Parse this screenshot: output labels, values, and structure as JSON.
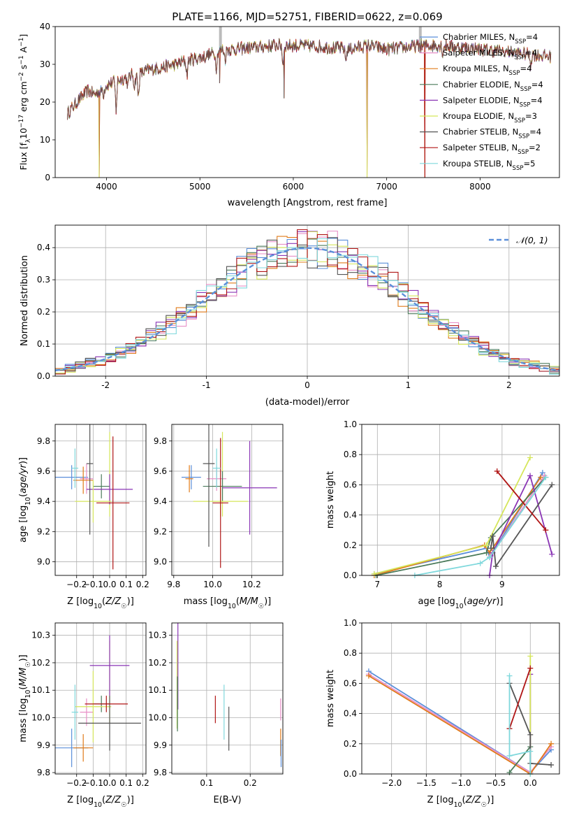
{
  "figure_title": "PLATE=1166, MJD=52751, FIBERID=0622, z=0.069",
  "colors": {
    "Chabrier MILES": "#5b8fd9",
    "Salpeter MILES": "#e88fc7",
    "Kroupa MILES": "#e07b1a",
    "Chabrier ELODIE": "#4a7a5a",
    "Salpeter ELODIE": "#8a35b5",
    "Kroupa ELODIE": "#d5e65a",
    "Chabrier STELIB": "#555555",
    "Salpeter STELIB": "#b01515",
    "Kroupa STELIB": "#7fd8dc",
    "normal_curve": "#5b8fd9",
    "grid": "#b0b0b0"
  },
  "chart_data": [
    {
      "id": "spectrum",
      "type": "line",
      "xlabel": "wavelength [Angstrom, rest frame]",
      "ylabel": "Flux [f_λ 10^-17 erg cm^-2 s^-1 A^-1]",
      "xlim": [
        3450,
        8850
      ],
      "ylim": [
        0,
        40
      ],
      "xticks": [
        4000,
        5000,
        6000,
        7000,
        8000
      ],
      "yticks": [
        0,
        10,
        20,
        30,
        40
      ],
      "grid": false,
      "legend_position": "top-right",
      "legend": [
        {
          "key": "Chabrier MILES",
          "label": "Chabrier MILES, N",
          "sub": "SSP",
          "n": "=4"
        },
        {
          "key": "Salpeter MILES",
          "label": "Salpeter MILES, N",
          "sub": "SSP",
          "n": "=4"
        },
        {
          "key": "Kroupa MILES",
          "label": "Kroupa MILES, N",
          "sub": "SSP",
          "n": "=4"
        },
        {
          "key": "Chabrier ELODIE",
          "label": "Chabrier ELODIE, N",
          "sub": "SSP",
          "n": "=4"
        },
        {
          "key": "Salpeter ELODIE",
          "label": "Salpeter ELODIE, N",
          "sub": "SSP",
          "n": "=4"
        },
        {
          "key": "Kroupa ELODIE",
          "label": "Kroupa ELODIE, N",
          "sub": "SSP",
          "n": "=3"
        },
        {
          "key": "Chabrier STELIB",
          "label": "Chabrier STELIB, N",
          "sub": "SSP",
          "n": "=4"
        },
        {
          "key": "Salpeter STELIB",
          "label": "Salpeter STELIB, N",
          "sub": "SSP",
          "n": "=2"
        },
        {
          "key": "Kroupa STELIB",
          "label": "Kroupa STELIB, N",
          "sub": "SSP",
          "n": "=5"
        }
      ],
      "continuum": [
        [
          3580,
          17
        ],
        [
          3650,
          19
        ],
        [
          3720,
          21
        ],
        [
          3800,
          23
        ],
        [
          3880,
          22
        ],
        [
          3950,
          24
        ],
        [
          4050,
          25
        ],
        [
          4150,
          26
        ],
        [
          4250,
          27
        ],
        [
          4350,
          27.5
        ],
        [
          4450,
          28.5
        ],
        [
          4550,
          29
        ],
        [
          4650,
          29.5
        ],
        [
          4750,
          30
        ],
        [
          4850,
          31
        ],
        [
          4950,
          31.5
        ],
        [
          5050,
          32
        ],
        [
          5150,
          33
        ],
        [
          5250,
          34
        ],
        [
          5400,
          34
        ],
        [
          5600,
          34.5
        ],
        [
          5800,
          35
        ],
        [
          6000,
          35
        ],
        [
          6200,
          34.8
        ],
        [
          6400,
          34.5
        ],
        [
          6600,
          34
        ],
        [
          6800,
          35
        ],
        [
          7000,
          34
        ],
        [
          7200,
          34.5
        ],
        [
          7400,
          35
        ],
        [
          7600,
          35
        ],
        [
          7800,
          34.5
        ],
        [
          8000,
          34
        ],
        [
          8200,
          33.5
        ],
        [
          8400,
          33
        ],
        [
          8600,
          32.5
        ],
        [
          8800,
          32
        ]
      ],
      "absorption_features": [
        [
          3933,
          22
        ],
        [
          3968,
          22
        ],
        [
          4102,
          18
        ],
        [
          4227,
          24
        ],
        [
          4300,
          24
        ],
        [
          4340,
          21
        ],
        [
          4861,
          27
        ],
        [
          5175,
          29
        ],
        [
          5270,
          31
        ],
        [
          5890,
          30
        ],
        [
          6563,
          31
        ],
        [
          7600,
          33
        ],
        [
          8542,
          30
        ]
      ],
      "deep_spikes": [
        [
          3920,
          0
        ],
        [
          5210,
          25
        ],
        [
          5900,
          21
        ],
        [
          6790,
          0
        ],
        [
          7410,
          0
        ]
      ],
      "high_spikes": [
        [
          5220,
          40
        ],
        [
          7360,
          40
        ]
      ]
    },
    {
      "id": "residuals",
      "type": "histogram",
      "xlabel": "(data-model)/error",
      "ylabel": "Normed distribution",
      "xlim": [
        -2.5,
        2.5
      ],
      "ylim": [
        0,
        0.47
      ],
      "xticks": [
        -2,
        -1,
        0,
        1,
        2
      ],
      "yticks": [
        0.0,
        0.1,
        0.2,
        0.3,
        0.4
      ],
      "grid": true,
      "bin_width": 0.1,
      "legend_position": "top-right",
      "normal_curve_label": "𝒩(0, 1)"
    },
    {
      "id": "age_vs_Z",
      "type": "scatter",
      "xlabel": "Z [log10(Z/Z☉)]",
      "ylabel": "age [log10(age/yr)]",
      "xlim": [
        -0.33,
        0.22
      ],
      "ylim": [
        8.91,
        9.91
      ],
      "xticks": [
        -0.2,
        -0.1,
        0.0,
        0.1,
        0.2
      ],
      "xtick_labels": [
        "−0.2",
        "−0.1",
        "0.0",
        "0.1",
        "0.2"
      ],
      "yticks": [
        9.0,
        9.2,
        9.4,
        9.6,
        9.8
      ],
      "grid": true,
      "points": [
        {
          "key": "Chabrier MILES",
          "x": -0.23,
          "xerr": 0.1,
          "y": 9.56,
          "yerr": 0.08
        },
        {
          "key": "Salpeter MILES",
          "x": -0.14,
          "xerr": 0.04,
          "y": 9.55,
          "yerr": 0.1
        },
        {
          "key": "Kroupa MILES",
          "x": -0.16,
          "xerr": 0.06,
          "y": 9.54,
          "yerr": 0.09
        },
        {
          "key": "Chabrier ELODIE",
          "x": -0.05,
          "xerr": 0.05,
          "y": 9.5,
          "yerr": 0.08
        },
        {
          "key": "Salpeter ELODIE",
          "x": 0.0,
          "xerr": 0.14,
          "y": 9.48,
          "yerr": 0.1
        },
        {
          "key": "Kroupa ELODIE",
          "x": -0.1,
          "xerr": 0.11,
          "y": 9.4,
          "yerr": 0.14
        },
        {
          "key": "Chabrier STELIB",
          "x": -0.12,
          "xerr": 0.02,
          "y": 9.65,
          "yerr": 0.47
        },
        {
          "key": "Salpeter STELIB",
          "x": 0.02,
          "xerr": 0.1,
          "y": 9.39,
          "yerr": 0.44
        },
        {
          "key": "Kroupa STELIB",
          "x": -0.21,
          "xerr": 0.02,
          "y": 9.62,
          "yerr": 0.13
        }
      ],
      "extra_bars": [
        {
          "key": "Kroupa ELODIE",
          "x": 0.0,
          "y": 9.58,
          "yerr": 0.28
        }
      ]
    },
    {
      "id": "age_vs_mass",
      "type": "scatter",
      "xlabel": "mass [log10(M/M☉)]",
      "ylabel": "",
      "xlim": [
        9.79,
        10.36
      ],
      "ylim": [
        8.91,
        9.91
      ],
      "xticks": [
        9.8,
        10.0,
        10.2
      ],
      "xtick_labels": [
        "9.8",
        "10.0",
        "10.2"
      ],
      "yticks": [
        9.0,
        9.2,
        9.4,
        9.6,
        9.8
      ],
      "grid": true,
      "points": [
        {
          "key": "Chabrier MILES",
          "x": 9.89,
          "xerr": 0.05,
          "y": 9.56,
          "yerr": 0.08
        },
        {
          "key": "Salpeter MILES",
          "x": 10.02,
          "xerr": 0.05,
          "y": 9.55,
          "yerr": 0.08
        },
        {
          "key": "Kroupa MILES",
          "x": 9.88,
          "xerr": 0.02,
          "y": 9.55,
          "yerr": 0.09
        },
        {
          "key": "Chabrier ELODIE",
          "x": 10.05,
          "xerr": 0.1,
          "y": 9.5,
          "yerr": 0.1
        },
        {
          "key": "Salpeter ELODIE",
          "x": 10.19,
          "xerr": 0.14,
          "y": 9.49,
          "yerr": 0.31
        },
        {
          "key": "Kroupa ELODIE",
          "x": 10.04,
          "xerr": 0.14,
          "y": 9.4,
          "yerr": 0.1
        },
        {
          "key": "Chabrier STELIB",
          "x": 9.98,
          "xerr": 0.03,
          "y": 9.65,
          "yerr": 0.55
        },
        {
          "key": "Salpeter STELIB",
          "x": 10.04,
          "xerr": 0.04,
          "y": 9.39,
          "yerr": 0.43
        },
        {
          "key": "Kroupa STELIB",
          "x": 10.02,
          "xerr": 0.02,
          "y": 9.62,
          "yerr": 0.13
        }
      ],
      "extra_bars": [
        {
          "key": "Kroupa ELODIE",
          "x": 10.05,
          "y": 9.58,
          "yerr": 0.28
        }
      ]
    },
    {
      "id": "weight_vs_age",
      "type": "line",
      "xlabel": "age [log10(age/yr)]",
      "ylabel": "mass weight",
      "xlim": [
        6.75,
        9.92
      ],
      "ylim": [
        0,
        1
      ],
      "xticks": [
        7,
        8,
        9
      ],
      "yticks": [
        0.0,
        0.2,
        0.4,
        0.6,
        0.8,
        1.0
      ],
      "grid": true,
      "series": [
        {
          "key": "Chabrier MILES",
          "points": [
            [
              6.95,
              0.01
            ],
            [
              8.75,
              0.18
            ],
            [
              8.8,
              0.12
            ],
            [
              9.65,
              0.68
            ]
          ]
        },
        {
          "key": "Salpeter MILES",
          "points": [
            [
              6.95,
              0.0
            ],
            [
              8.72,
              0.2
            ],
            [
              8.82,
              0.13
            ],
            [
              9.68,
              0.66
            ]
          ]
        },
        {
          "key": "Kroupa MILES",
          "points": [
            [
              6.95,
              0.0
            ],
            [
              8.72,
              0.2
            ],
            [
              8.8,
              0.15
            ],
            [
              9.62,
              0.65
            ]
          ]
        },
        {
          "key": "Chabrier ELODIE",
          "points": [
            [
              6.98,
              0.0
            ],
            [
              8.75,
              0.15
            ],
            [
              8.82,
              0.25
            ],
            [
              9.7,
              0.65
            ]
          ]
        },
        {
          "key": "Salpeter ELODIE",
          "points": [
            [
              8.8,
              0.0
            ],
            [
              8.85,
              0.15
            ],
            [
              9.45,
              0.66
            ],
            [
              9.8,
              0.14
            ]
          ]
        },
        {
          "key": "Kroupa ELODIE",
          "points": [
            [
              6.95,
              0.01
            ],
            [
              8.75,
              0.2
            ],
            [
              9.45,
              0.78
            ]
          ]
        },
        {
          "key": "Chabrier STELIB",
          "points": [
            [
              8.82,
              0.18
            ],
            [
              8.85,
              0.26
            ],
            [
              8.9,
              0.06
            ],
            [
              9.8,
              0.6
            ]
          ]
        },
        {
          "key": "Salpeter STELIB",
          "points": [
            [
              8.92,
              0.69
            ],
            [
              9.7,
              0.3
            ]
          ]
        },
        {
          "key": "Kroupa STELIB",
          "points": [
            [
              7.6,
              0.0
            ],
            [
              8.65,
              0.08
            ],
            [
              8.8,
              0.12
            ],
            [
              9.7,
              0.65
            ]
          ]
        }
      ]
    },
    {
      "id": "mass_vs_Z",
      "type": "scatter",
      "xlabel": "Z [log10(Z/Z☉)]",
      "ylabel": "mass [log10(M/M☉)]",
      "xlim": [
        -0.33,
        0.22
      ],
      "ylim": [
        9.795,
        10.345
      ],
      "xticks": [
        -0.2,
        -0.1,
        0.0,
        0.1,
        0.2
      ],
      "xtick_labels": [
        "−0.2",
        "−0.1",
        "0.0",
        "0.1",
        "0.2"
      ],
      "yticks": [
        9.8,
        9.9,
        10.0,
        10.1,
        10.2,
        10.3
      ],
      "grid": true,
      "points": [
        {
          "key": "Chabrier MILES",
          "x": -0.23,
          "xerr": 0.1,
          "y": 9.89,
          "yerr": 0.07
        },
        {
          "key": "Salpeter MILES",
          "x": -0.14,
          "xerr": 0.04,
          "y": 10.02,
          "yerr": 0.05
        },
        {
          "key": "Kroupa MILES",
          "x": -0.16,
          "xerr": 0.06,
          "y": 9.89,
          "yerr": 0.05
        },
        {
          "key": "Chabrier ELODIE",
          "x": -0.05,
          "xerr": 0.05,
          "y": 10.05,
          "yerr": 0.03
        },
        {
          "key": "Salpeter ELODIE",
          "x": 0.0,
          "xerr": 0.12,
          "y": 10.19,
          "yerr": 0.11
        },
        {
          "key": "Kroupa ELODIE",
          "x": -0.1,
          "xerr": 0.11,
          "y": 10.04,
          "yerr": 0.13
        },
        {
          "key": "Chabrier STELIB",
          "x": 0.0,
          "xerr": 0.19,
          "y": 9.98,
          "yerr": 0.1
        },
        {
          "key": "Salpeter STELIB",
          "x": -0.02,
          "xerr": 0.13,
          "y": 10.05,
          "yerr": 0.03
        },
        {
          "key": "Kroupa STELIB",
          "x": -0.21,
          "xerr": 0.02,
          "y": 10.02,
          "yerr": 0.1
        }
      ],
      "extra_bars": [
        {
          "key": "Kroupa ELODIE",
          "x": 0.0,
          "y": 10.13,
          "yerr": 0.15
        }
      ]
    },
    {
      "id": "mass_vs_ebv",
      "type": "scatter",
      "xlabel": "E(B-V)",
      "ylabel": "",
      "xlim": [
        0.02,
        0.275
      ],
      "ylim": [
        9.795,
        10.345
      ],
      "xticks": [
        0.1,
        0.2
      ],
      "xtick_labels": [
        "0.1",
        "0.2"
      ],
      "yticks": [
        9.8,
        9.9,
        10.0,
        10.1,
        10.2,
        10.3
      ],
      "grid": true,
      "points": [
        {
          "key": "Salpeter ELODIE",
          "x": 0.034,
          "y": 10.19,
          "yerr": 0.16
        },
        {
          "key": "Kroupa ELODIE",
          "x": 0.032,
          "y": 10.12,
          "yerr": 0.16
        },
        {
          "key": "Chabrier ELODIE",
          "x": 0.033,
          "y": 10.05,
          "yerr": 0.1
        },
        {
          "key": "Salpeter STELIB",
          "x": 0.12,
          "y": 10.03,
          "yerr": 0.05
        },
        {
          "key": "Kroupa STELIB",
          "x": 0.14,
          "y": 10.02,
          "yerr": 0.1
        },
        {
          "key": "Chabrier STELIB",
          "x": 0.151,
          "y": 9.96,
          "yerr": 0.08
        },
        {
          "key": "Salpeter MILES",
          "x": 0.27,
          "y": 10.03,
          "yerr": 0.04
        },
        {
          "key": "Kroupa MILES",
          "x": 0.27,
          "y": 9.91,
          "yerr": 0.05
        },
        {
          "key": "Chabrier MILES",
          "x": 0.271,
          "y": 9.87,
          "yerr": 0.05
        }
      ]
    },
    {
      "id": "weight_vs_Z",
      "type": "line",
      "xlabel": "Z [log10(Z/Z☉)]",
      "ylabel": "mass weight",
      "xlim": [
        -2.43,
        0.42
      ],
      "ylim": [
        0,
        1
      ],
      "xticks": [
        -2.0,
        -1.5,
        -1.0,
        -0.5,
        0.0
      ],
      "xtick_labels": [
        "−2.0",
        "−1.5",
        "−1.0",
        "−0.5",
        "0.0"
      ],
      "yticks": [
        0.0,
        0.2,
        0.4,
        0.6,
        0.8,
        1.0
      ],
      "grid": true,
      "series": [
        {
          "key": "Chabrier MILES",
          "points": [
            [
              -2.33,
              0.68
            ],
            [
              0.0,
              0.01
            ],
            [
              0.3,
              0.16
            ]
          ]
        },
        {
          "key": "Salpeter MILES",
          "points": [
            [
              -2.33,
              0.66
            ],
            [
              0.0,
              0.01
            ],
            [
              0.3,
              0.18
            ]
          ]
        },
        {
          "key": "Kroupa MILES",
          "points": [
            [
              -2.33,
              0.65
            ],
            [
              0.0,
              0.0
            ],
            [
              0.3,
              0.2
            ]
          ]
        },
        {
          "key": "Chabrier ELODIE",
          "points": [
            [
              -0.3,
              0.01
            ],
            [
              0.0,
              0.18
            ]
          ]
        },
        {
          "key": "Salpeter ELODIE",
          "points": [
            [
              0.0,
              0.66
            ],
            [
              0.0,
              0.0
            ]
          ]
        },
        {
          "key": "Kroupa ELODIE",
          "points": [
            [
              0.0,
              0.78
            ],
            [
              0.0,
              0.0
            ]
          ]
        },
        {
          "key": "Chabrier STELIB",
          "points": [
            [
              -0.3,
              0.6
            ],
            [
              0.0,
              0.26
            ],
            [
              0.0,
              0.07
            ],
            [
              0.3,
              0.06
            ]
          ]
        },
        {
          "key": "Salpeter STELIB",
          "points": [
            [
              -0.3,
              0.3
            ],
            [
              0.0,
              0.7
            ]
          ]
        },
        {
          "key": "Kroupa STELIB",
          "points": [
            [
              -0.3,
              0.65
            ],
            [
              -0.3,
              0.12
            ],
            [
              0.0,
              0.15
            ],
            [
              0.0,
              0.0
            ]
          ]
        }
      ]
    }
  ]
}
